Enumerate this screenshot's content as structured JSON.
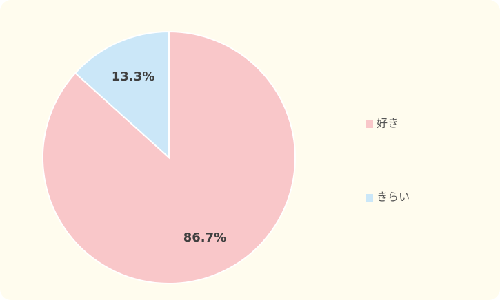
{
  "chart_data": {
    "type": "pie",
    "categories": [
      "好き",
      "きらい"
    ],
    "values": [
      86.7,
      13.3
    ],
    "value_labels": [
      "86.7%",
      "13.3%"
    ],
    "colors": [
      "#f9c7c9",
      "#cbe7f8"
    ],
    "legend": "right"
  }
}
